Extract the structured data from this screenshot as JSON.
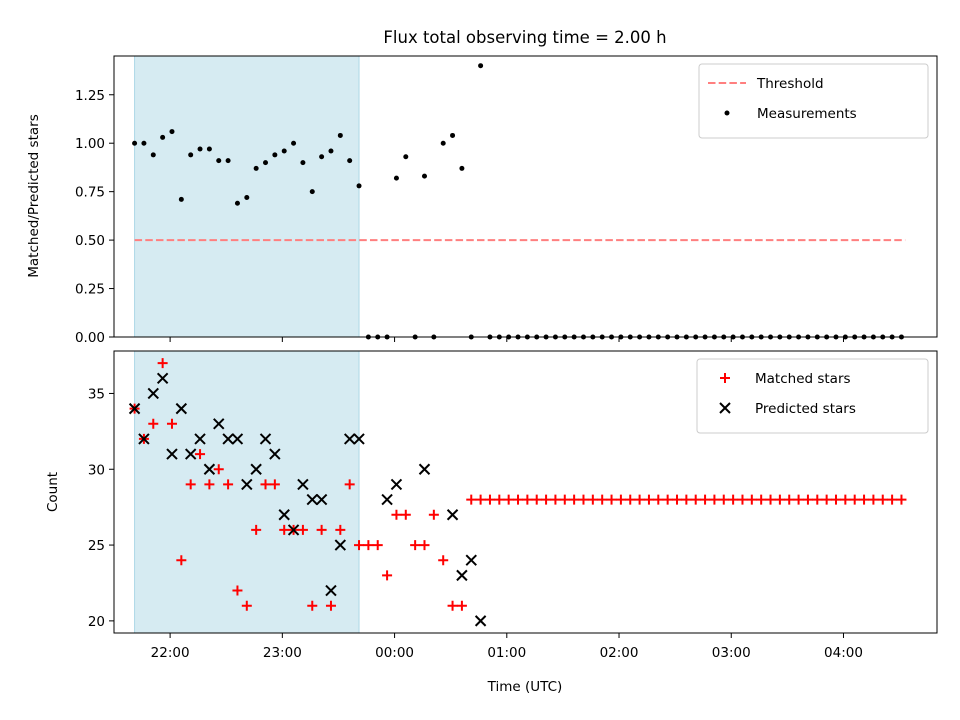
{
  "chart_data": {
    "title": "Flux total observing time = 2.00 h",
    "xlabel": "Time (UTC)",
    "x_ticks": [
      "22:00",
      "23:00",
      "00:00",
      "01:00",
      "02:00",
      "03:00",
      "04:00"
    ],
    "x_range": [
      "21:30",
      "04:50"
    ],
    "shaded_span": {
      "start": "21:41",
      "end": "23:41",
      "color": "#add8e6"
    },
    "panels": [
      {
        "type": "scatter",
        "ylabel": "Matched/Predicted stars",
        "ylim": [
          0,
          1.45
        ],
        "y_ticks": [
          "0.00",
          "0.25",
          "0.50",
          "0.75",
          "1.00",
          "1.25"
        ],
        "legend_position": "top-right",
        "threshold": {
          "name": "Threshold",
          "value": 0.5,
          "start": "21:41",
          "end": "04:33",
          "color": "#ff7f7f"
        },
        "series": [
          {
            "name": "Measurements",
            "color": "#000000",
            "marker": "dot",
            "x": [
              "21:41",
              "21:46",
              "21:51",
              "21:56",
              "22:01",
              "22:06",
              "22:11",
              "22:16",
              "22:21",
              "22:26",
              "22:31",
              "22:36",
              "22:41",
              "22:46",
              "22:51",
              "22:56",
              "23:01",
              "23:06",
              "23:11",
              "23:16",
              "23:21",
              "23:26",
              "23:31",
              "23:36",
              "23:41",
              "23:46",
              "23:51",
              "23:56",
              "00:01",
              "00:06",
              "00:11",
              "00:16",
              "00:21",
              "00:26",
              "00:31",
              "00:36",
              "00:41",
              "00:46",
              "00:51",
              "00:56",
              "01:01",
              "01:06",
              "01:11",
              "01:16",
              "01:21",
              "01:26",
              "01:31",
              "01:36",
              "01:41",
              "01:46",
              "01:51",
              "01:56",
              "02:01",
              "02:06",
              "02:11",
              "02:16",
              "02:21",
              "02:26",
              "02:31",
              "02:36",
              "02:41",
              "02:46",
              "02:51",
              "02:56",
              "03:01",
              "03:06",
              "03:11",
              "03:16",
              "03:21",
              "03:26",
              "03:31",
              "03:36",
              "03:41",
              "03:46",
              "03:51",
              "03:56",
              "04:01",
              "04:06",
              "04:11",
              "04:16",
              "04:21",
              "04:26",
              "04:31"
            ],
            "y": [
              1.0,
              1.0,
              0.94,
              1.03,
              1.06,
              0.71,
              0.94,
              0.97,
              0.97,
              0.91,
              0.91,
              0.69,
              0.72,
              0.87,
              0.9,
              0.94,
              0.96,
              1.0,
              0.9,
              0.75,
              0.93,
              0.96,
              1.04,
              0.91,
              0.78,
              0,
              0,
              0,
              0.82,
              0.93,
              0,
              0.83,
              0,
              1.0,
              1.04,
              0.87,
              0,
              1.4,
              0,
              0,
              0,
              0,
              0,
              0,
              0,
              0,
              0,
              0,
              0,
              0,
              0,
              0,
              0,
              0,
              0,
              0,
              0,
              0,
              0,
              0,
              0,
              0,
              0,
              0,
              0,
              0,
              0,
              0,
              0,
              0,
              0,
              0,
              0,
              0,
              0,
              0,
              0,
              0,
              0,
              0,
              0,
              0,
              0
            ]
          }
        ]
      },
      {
        "type": "scatter",
        "ylabel": "Count",
        "ylim": [
          19.2,
          37.8
        ],
        "y_ticks": [
          "20",
          "25",
          "30",
          "35"
        ],
        "legend_position": "top-right",
        "series": [
          {
            "name": "Matched stars",
            "color": "#ff0000",
            "marker": "plus",
            "x": [
              "21:41",
              "21:46",
              "21:51",
              "21:56",
              "22:01",
              "22:06",
              "22:11",
              "22:16",
              "22:21",
              "22:26",
              "22:31",
              "22:36",
              "22:41",
              "22:46",
              "22:51",
              "22:56",
              "23:01",
              "23:06",
              "23:11",
              "23:16",
              "23:21",
              "23:26",
              "23:31",
              "23:36",
              "23:41",
              "23:46",
              "23:51",
              "23:56",
              "00:01",
              "00:06",
              "00:11",
              "00:16",
              "00:21",
              "00:26",
              "00:31",
              "00:36",
              "00:41",
              "00:46",
              "00:51",
              "00:56",
              "01:01",
              "01:06",
              "01:11",
              "01:16",
              "01:21",
              "01:26",
              "01:31",
              "01:36",
              "01:41",
              "01:46",
              "01:51",
              "01:56",
              "02:01",
              "02:06",
              "02:11",
              "02:16",
              "02:21",
              "02:26",
              "02:31",
              "02:36",
              "02:41",
              "02:46",
              "02:51",
              "02:56",
              "03:01",
              "03:06",
              "03:11",
              "03:16",
              "03:21",
              "03:26",
              "03:31",
              "03:36",
              "03:41",
              "03:46",
              "03:51",
              "03:56",
              "04:01",
              "04:06",
              "04:11",
              "04:16",
              "04:21",
              "04:26",
              "04:31"
            ],
            "y": [
              34,
              32,
              33,
              37,
              33,
              24,
              29,
              31,
              29,
              30,
              29,
              22,
              21,
              26,
              29,
              29,
              26,
              26,
              26,
              21,
              26,
              21,
              26,
              29,
              25,
              25,
              25,
              23,
              27,
              27,
              25,
              25,
              27,
              24,
              21,
              21,
              28,
              28,
              28,
              28,
              28,
              28,
              28,
              28,
              28,
              28,
              28,
              28,
              28,
              28,
              28,
              28,
              28,
              28,
              28,
              28,
              28,
              28,
              28,
              28,
              28,
              28,
              28,
              28,
              28,
              28,
              28,
              28,
              28,
              28,
              28,
              28,
              28,
              28,
              28,
              28,
              28,
              28,
              28,
              28,
              28,
              28,
              28
            ]
          },
          {
            "name": "Predicted stars",
            "color": "#000000",
            "marker": "x",
            "x": [
              "21:41",
              "21:46",
              "21:51",
              "21:56",
              "22:01",
              "22:06",
              "22:11",
              "22:16",
              "22:21",
              "22:26",
              "22:31",
              "22:36",
              "22:41",
              "22:46",
              "22:51",
              "22:56",
              "23:01",
              "23:06",
              "23:11",
              "23:16",
              "23:21",
              "23:26",
              "23:31",
              "23:36",
              "23:41",
              "23:56",
              "00:01",
              "00:16",
              "00:31",
              "00:36",
              "00:41",
              "00:46"
            ],
            "y": [
              34,
              32,
              35,
              36,
              31,
              34,
              31,
              32,
              30,
              33,
              32,
              32,
              29,
              30,
              32,
              31,
              27,
              26,
              29,
              28,
              28,
              22,
              25,
              32,
              32,
              28,
              29,
              30,
              27,
              23,
              24,
              20
            ]
          }
        ]
      }
    ]
  }
}
